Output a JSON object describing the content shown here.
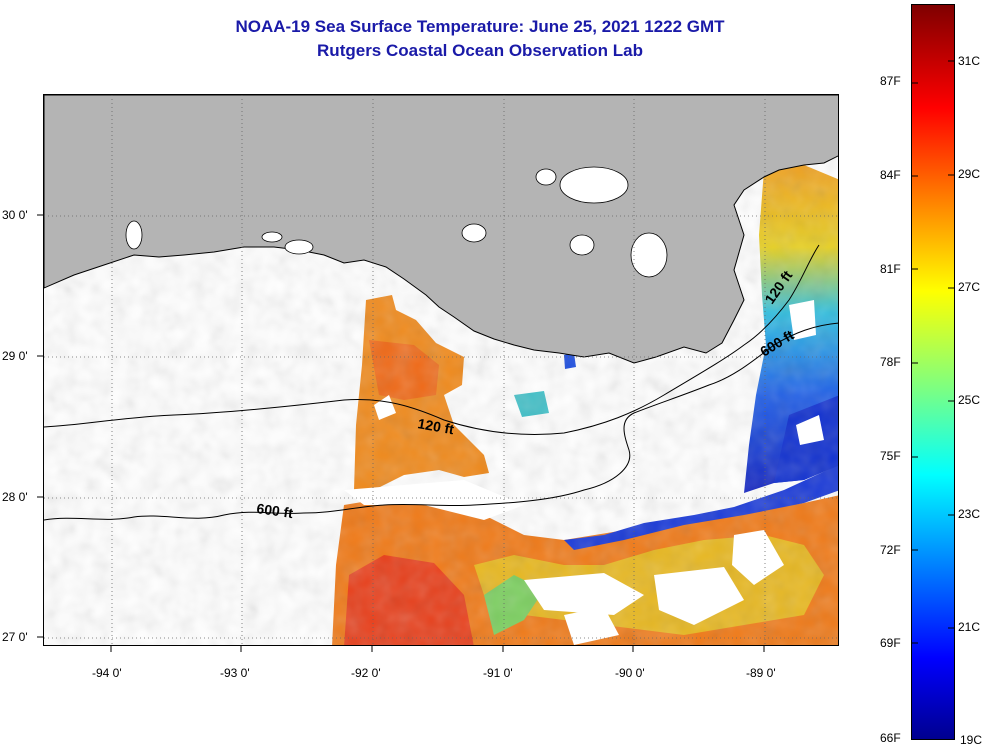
{
  "title": {
    "line1": "NOAA-19 Sea Surface Temperature:  June 25, 2021 1222 GMT",
    "line2": "Rutgers Coastal Ocean Observation Lab"
  },
  "map": {
    "lon_range": [
      -94.5,
      -88.4
    ],
    "lat_range": [
      26.95,
      29.85
    ],
    "lon_ticks": [
      "-94 0'",
      "-93 0'",
      "-92 0'",
      "-91 0'",
      "-90 0'",
      "-89 0'"
    ],
    "lat_ticks": [
      "30 0'",
      "29 0'",
      "28 0'",
      "27 0'"
    ],
    "contours": [
      {
        "label": "120 ft"
      },
      {
        "label": "600 ft"
      },
      {
        "label": "120 ft"
      },
      {
        "label": "600 ft"
      }
    ],
    "colors": {
      "land": "#b4b4b4",
      "clouds": "#ffffff"
    }
  },
  "colorbar": {
    "fahrenheit": [
      "87F",
      "84F",
      "81F",
      "78F",
      "75F",
      "72F",
      "69F",
      "66F"
    ],
    "celsius": [
      "31C",
      "29C",
      "27C",
      "25C",
      "23C",
      "21C",
      "19C"
    ],
    "scale": "jet"
  }
}
